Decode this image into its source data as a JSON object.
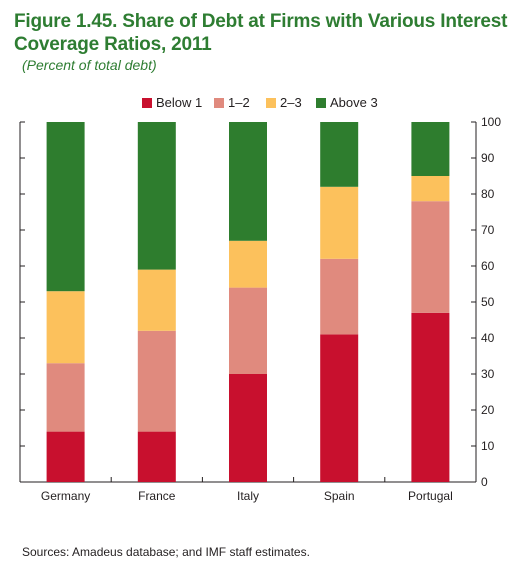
{
  "figure": {
    "title_line1": "Figure 1.45. Share of Debt at Firms with Various Interest",
    "title_line2": "Coverage Ratios, 2011",
    "subtitle": "(Percent of total debt)",
    "source": "Sources: Amadeus database; and IMF staff estimates."
  },
  "colors": {
    "below1": "#c8102e",
    "one_two": "#e08a7e",
    "two_three": "#fcc15c",
    "above3": "#2e7d2e",
    "axis": "#231f20"
  },
  "chart_data": {
    "type": "bar",
    "stacked": true,
    "categories": [
      "Germany",
      "France",
      "Italy",
      "Spain",
      "Portugal"
    ],
    "series": [
      {
        "name": "Below 1",
        "color_key": "below1",
        "values": [
          14,
          14,
          30,
          41,
          47
        ]
      },
      {
        "name": "1–2",
        "color_key": "one_two",
        "values": [
          19,
          28,
          24,
          21,
          31
        ]
      },
      {
        "name": "2–3",
        "color_key": "two_three",
        "values": [
          20,
          17,
          13,
          20,
          7
        ]
      },
      {
        "name": "Above 3",
        "color_key": "above3",
        "values": [
          47,
          41,
          33,
          18,
          15
        ]
      }
    ],
    "ylim": [
      0,
      100
    ],
    "yticks": [
      "0",
      "10",
      "20",
      "30",
      "40",
      "50",
      "60",
      "70",
      "80",
      "90",
      "100"
    ],
    "legend_position": "top-center",
    "grid": false,
    "y_axis_side": "right"
  }
}
